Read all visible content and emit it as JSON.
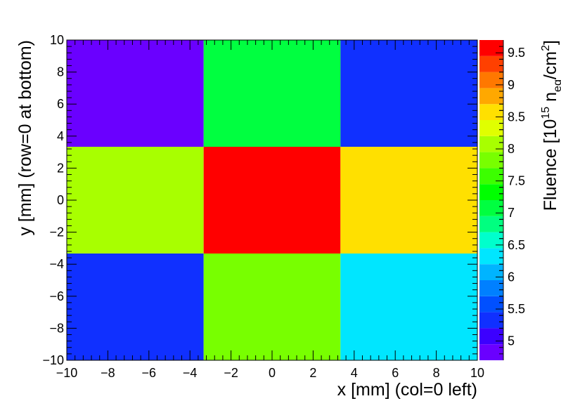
{
  "chart_data": {
    "type": "heatmap",
    "xlabel": "x [mm] (col=0 left)",
    "ylabel": "y [mm] (row=0 at bottom)",
    "zlabel": {
      "prefix": "Fluence [10",
      "exp": "15",
      "unit": " n",
      "unit_sub": "eq",
      "tail": "/cm",
      "tail_sup": "2",
      "close": "]"
    },
    "xlim": [
      -10,
      10
    ],
    "ylim": [
      -10,
      10
    ],
    "zlim": [
      4.7,
      9.7
    ],
    "x_bin_edges": [
      -10,
      -3.333,
      3.333,
      10
    ],
    "y_bin_edges": [
      -10,
      -3.333,
      3.333,
      10
    ],
    "z_rows_bottom_to_top": [
      [
        5.3,
        7.7,
        6.2
      ],
      [
        8.0,
        9.6,
        8.7
      ],
      [
        4.9,
        7.0,
        5.3
      ]
    ],
    "x_ticks": [
      {
        "v": -10,
        "label": "−10"
      },
      {
        "v": -8,
        "label": "−8"
      },
      {
        "v": -6,
        "label": "−6"
      },
      {
        "v": -4,
        "label": "−4"
      },
      {
        "v": -2,
        "label": "−2"
      },
      {
        "v": 0,
        "label": "0"
      },
      {
        "v": 2,
        "label": "2"
      },
      {
        "v": 4,
        "label": "4"
      },
      {
        "v": 6,
        "label": "6"
      },
      {
        "v": 8,
        "label": "8"
      },
      {
        "v": 10,
        "label": "10"
      }
    ],
    "y_ticks": [
      {
        "v": -10,
        "label": "−10"
      },
      {
        "v": -8,
        "label": "−8"
      },
      {
        "v": -6,
        "label": "−6"
      },
      {
        "v": -4,
        "label": "−4"
      },
      {
        "v": -2,
        "label": "−2"
      },
      {
        "v": 0,
        "label": "0"
      },
      {
        "v": 2,
        "label": "2"
      },
      {
        "v": 4,
        "label": "4"
      },
      {
        "v": 6,
        "label": "6"
      },
      {
        "v": 8,
        "label": "8"
      },
      {
        "v": 10,
        "label": "10"
      }
    ],
    "z_ticks": [
      {
        "v": 5,
        "label": "5"
      },
      {
        "v": 5.5,
        "label": "5.5"
      },
      {
        "v": 6,
        "label": "6"
      },
      {
        "v": 6.5,
        "label": "6.5"
      },
      {
        "v": 7,
        "label": "7"
      },
      {
        "v": 7.5,
        "label": "7.5"
      },
      {
        "v": 8,
        "label": "8"
      },
      {
        "v": 8.5,
        "label": "8.5"
      },
      {
        "v": 9,
        "label": "9"
      },
      {
        "v": 9.5,
        "label": "9.5"
      }
    ],
    "palette": [
      "#6a00ff",
      "#3c00ff",
      "#1030ff",
      "#0050ff",
      "#0080ff",
      "#00b4ff",
      "#00e6ff",
      "#00ffcc",
      "#00ff80",
      "#00ff40",
      "#00ff00",
      "#3cff00",
      "#78ff00",
      "#a8ff00",
      "#e0ff00",
      "#ffe000",
      "#ffa800",
      "#ff7800",
      "#ff4000",
      "#ff0000"
    ]
  }
}
